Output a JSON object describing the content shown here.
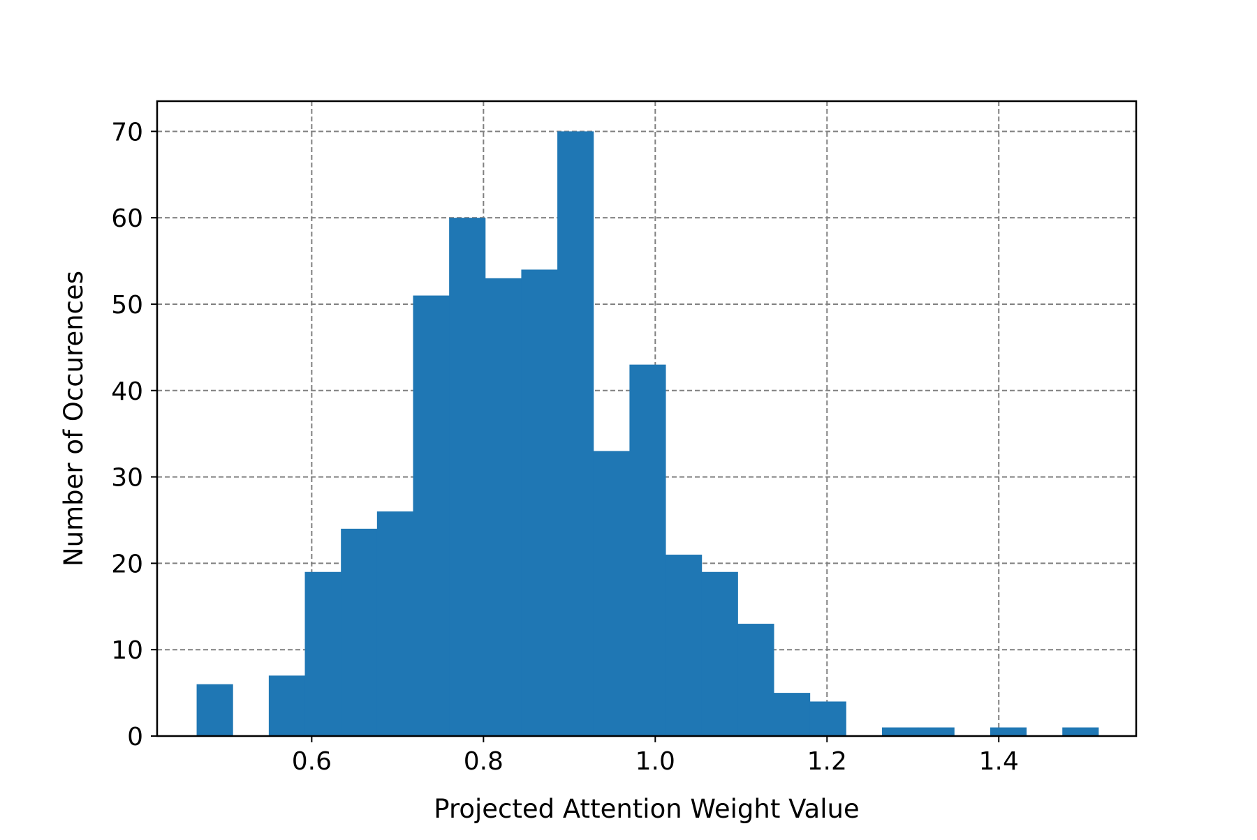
{
  "chart_data": {
    "type": "bar",
    "title": "",
    "xlabel": "Projected Attention Weight Value",
    "ylabel": "Number of Occurences",
    "xlim": [
      0.42,
      1.56
    ],
    "ylim": [
      0,
      73.5
    ],
    "xticks": [
      0.6,
      0.8,
      1.0,
      1.2,
      1.4
    ],
    "xtick_labels": [
      "0.6",
      "0.8",
      "1.0",
      "1.2",
      "1.4"
    ],
    "yticks": [
      0,
      10,
      20,
      30,
      40,
      50,
      60,
      70
    ],
    "ytick_labels": [
      "0",
      "10",
      "20",
      "30",
      "40",
      "50",
      "60",
      "70"
    ],
    "grid": true,
    "bar_color": "#1f77b4",
    "grid_color": "#808080",
    "bins": [
      {
        "x0": 0.466,
        "x1": 0.508,
        "count": 6
      },
      {
        "x0": 0.508,
        "x1": 0.55,
        "count": 0
      },
      {
        "x0": 0.55,
        "x1": 0.592,
        "count": 7
      },
      {
        "x0": 0.592,
        "x1": 0.634,
        "count": 19
      },
      {
        "x0": 0.634,
        "x1": 0.676,
        "count": 24
      },
      {
        "x0": 0.676,
        "x1": 0.718,
        "count": 26
      },
      {
        "x0": 0.718,
        "x1": 0.76,
        "count": 51
      },
      {
        "x0": 0.76,
        "x1": 0.802,
        "count": 60
      },
      {
        "x0": 0.802,
        "x1": 0.844,
        "count": 53
      },
      {
        "x0": 0.844,
        "x1": 0.886,
        "count": 54
      },
      {
        "x0": 0.886,
        "x1": 0.928,
        "count": 70
      },
      {
        "x0": 0.928,
        "x1": 0.97,
        "count": 33
      },
      {
        "x0": 0.97,
        "x1": 1.012,
        "count": 43
      },
      {
        "x0": 1.012,
        "x1": 1.054,
        "count": 21
      },
      {
        "x0": 1.054,
        "x1": 1.096,
        "count": 19
      },
      {
        "x0": 1.096,
        "x1": 1.138,
        "count": 13
      },
      {
        "x0": 1.138,
        "x1": 1.18,
        "count": 5
      },
      {
        "x0": 1.18,
        "x1": 1.222,
        "count": 4
      },
      {
        "x0": 1.222,
        "x1": 1.264,
        "count": 0
      },
      {
        "x0": 1.264,
        "x1": 1.306,
        "count": 1
      },
      {
        "x0": 1.306,
        "x1": 1.348,
        "count": 1
      },
      {
        "x0": 1.348,
        "x1": 1.39,
        "count": 0
      },
      {
        "x0": 1.39,
        "x1": 1.432,
        "count": 1
      },
      {
        "x0": 1.432,
        "x1": 1.474,
        "count": 0
      },
      {
        "x0": 1.474,
        "x1": 1.516,
        "count": 1
      }
    ]
  }
}
